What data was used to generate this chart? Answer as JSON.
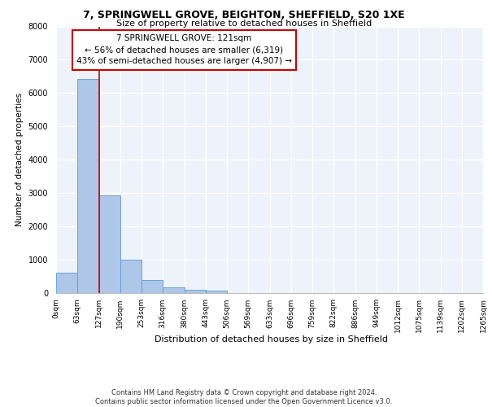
{
  "title_line1": "7, SPRINGWELL GROVE, BEIGHTON, SHEFFIELD, S20 1XE",
  "title_line2": "Size of property relative to detached houses in Sheffield",
  "xlabel": "Distribution of detached houses by size in Sheffield",
  "ylabel": "Number of detached properties",
  "bin_labels": [
    "0sqm",
    "63sqm",
    "127sqm",
    "190sqm",
    "253sqm",
    "316sqm",
    "380sqm",
    "443sqm",
    "506sqm",
    "569sqm",
    "633sqm",
    "696sqm",
    "759sqm",
    "822sqm",
    "886sqm",
    "949sqm",
    "1012sqm",
    "1075sqm",
    "1139sqm",
    "1202sqm",
    "1265sqm"
  ],
  "bar_values": [
    620,
    6420,
    2920,
    1010,
    380,
    160,
    90,
    70,
    0,
    0,
    0,
    0,
    0,
    0,
    0,
    0,
    0,
    0,
    0,
    0
  ],
  "bar_color": "#aec6e8",
  "bar_edge_color": "#5b9bd5",
  "highlight_line_color": "#cc0000",
  "annotation_text": "7 SPRINGWELL GROVE: 121sqm\n← 56% of detached houses are smaller (6,319)\n43% of semi-detached houses are larger (4,907) →",
  "annotation_box_color": "#ffffff",
  "annotation_box_edge_color": "#cc0000",
  "ylim": [
    0,
    8000
  ],
  "yticks": [
    0,
    1000,
    2000,
    3000,
    4000,
    5000,
    6000,
    7000,
    8000
  ],
  "background_color": "#eef2fa",
  "footer_line1": "Contains HM Land Registry data © Crown copyright and database right 2024.",
  "footer_line2": "Contains public sector information licensed under the Open Government Licence v3.0.",
  "grid_color": "#ffffff",
  "title1_fontsize": 9,
  "title2_fontsize": 8,
  "ylabel_fontsize": 7.5,
  "xlabel_fontsize": 8,
  "tick_fontsize": 6.5,
  "annotation_fontsize": 7.5,
  "footer_fontsize": 6
}
